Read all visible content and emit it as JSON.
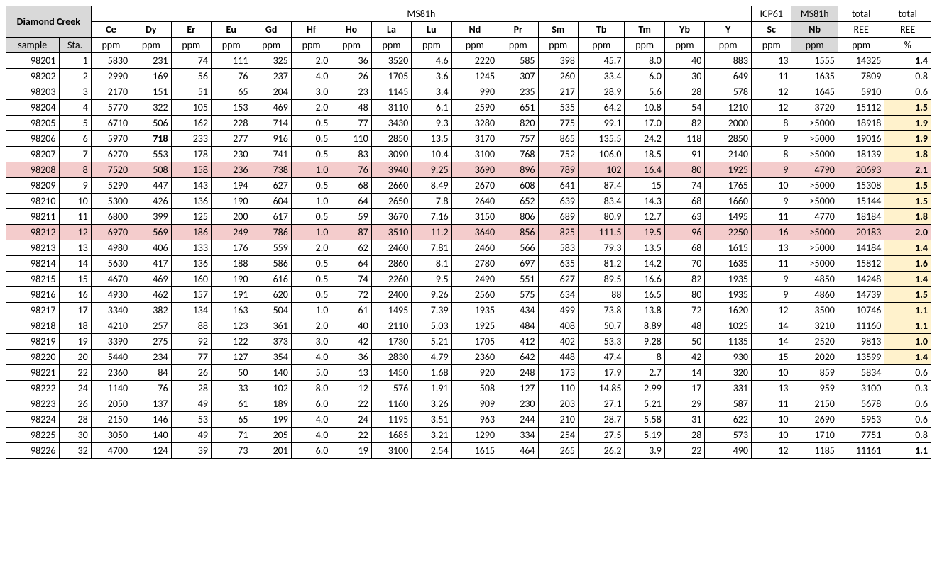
{
  "title_block": "Diamond Creek",
  "method_groups": {
    "ms81h": "MS81h",
    "icp61": "ICP61",
    "ms81h_b": "MS81h"
  },
  "totals_hdr": {
    "ree_ppm_top": "total",
    "ree_ppm_mid": "REE",
    "ree_ppm_unit": "ppm",
    "ree_pct_top": "total",
    "ree_pct_mid": "REE",
    "ree_pct_unit": "%"
  },
  "col_headers": {
    "sample": "sample",
    "sta": "Sta.",
    "elements": [
      "Ce",
      "Dy",
      "Er",
      "Eu",
      "Gd",
      "Hf",
      "Ho",
      "La",
      "Lu",
      "Nd",
      "Pr",
      "Sm",
      "Tb",
      "Tm",
      "Yb",
      "Y",
      "Sc",
      "Nb"
    ],
    "unit": "ppm"
  },
  "highlight_colors": {
    "pink_row_bg": "#f4cccc",
    "yellow_cell_bg": "#fff2cc",
    "grey_hdr_bg": "#d9d9d9"
  },
  "rows": [
    {
      "sample": "98201",
      "sta": "1",
      "v": [
        "5830",
        "231",
        "74",
        "111",
        "325",
        "2.0",
        "36",
        "3520",
        "4.6",
        "2220",
        "585",
        "398",
        "45.7",
        "8.0",
        "40",
        "883",
        "13",
        "1555"
      ],
      "ree": "14325",
      "pct": "1.4",
      "pctBold": true
    },
    {
      "sample": "98202",
      "sta": "2",
      "v": [
        "2990",
        "169",
        "56",
        "76",
        "237",
        "4.0",
        "26",
        "1705",
        "3.6",
        "1245",
        "307",
        "260",
        "33.4",
        "6.0",
        "30",
        "649",
        "11",
        "1635"
      ],
      "ree": "7809",
      "pct": "0.8"
    },
    {
      "sample": "98203",
      "sta": "3",
      "v": [
        "2170",
        "151",
        "51",
        "65",
        "204",
        "3.0",
        "23",
        "1145",
        "3.4",
        "990",
        "235",
        "217",
        "28.9",
        "5.6",
        "28",
        "578",
        "12",
        "1645"
      ],
      "ree": "5910",
      "pct": "0.6"
    },
    {
      "sample": "98204",
      "sta": "4",
      "v": [
        "5770",
        "322",
        "105",
        "153",
        "469",
        "2.0",
        "48",
        "3110",
        "6.1",
        "2590",
        "651",
        "535",
        "64.2",
        "10.8",
        "54",
        "1210",
        "12",
        "3720"
      ],
      "ree": "15112",
      "pct": "1.5",
      "pctBold": true,
      "pctHl": true
    },
    {
      "sample": "98205",
      "sta": "5",
      "v": [
        "6710",
        "506",
        "162",
        "228",
        "714",
        "0.5",
        "77",
        "3430",
        "9.3",
        "3280",
        "820",
        "775",
        "99.1",
        "17.0",
        "82",
        "2000",
        "8",
        ">5000"
      ],
      "ree": "18918",
      "pct": "1.9",
      "pctBold": true,
      "pctHl": true
    },
    {
      "sample": "98206",
      "sta": "6",
      "v": [
        "5970",
        "718",
        "233",
        "277",
        "916",
        "0.5",
        "110",
        "2850",
        "13.5",
        "3170",
        "757",
        "865",
        "135.5",
        "24.2",
        "118",
        "2850",
        "9",
        ">5000"
      ],
      "ree": "19016",
      "pct": "1.9",
      "pctBold": true,
      "pctHl": true,
      "boldCols": [
        1
      ]
    },
    {
      "sample": "98207",
      "sta": "7",
      "v": [
        "6270",
        "553",
        "178",
        "230",
        "741",
        "0.5",
        "83",
        "3090",
        "10.4",
        "3100",
        "768",
        "752",
        "106.0",
        "18.5",
        "91",
        "2140",
        "8",
        ">5000"
      ],
      "ree": "18139",
      "pct": "1.8",
      "pctBold": true,
      "pctHl": true
    },
    {
      "sample": "98208",
      "sta": "8",
      "v": [
        "7520",
        "508",
        "158",
        "236",
        "738",
        "1.0",
        "76",
        "3940",
        "9.25",
        "3690",
        "896",
        "789",
        "102",
        "16.4",
        "80",
        "1925",
        "9",
        "4790"
      ],
      "ree": "20693",
      "pct": "2.1",
      "pctBold": true,
      "rowHl": "pink"
    },
    {
      "sample": "98209",
      "sta": "9",
      "v": [
        "5290",
        "447",
        "143",
        "194",
        "627",
        "0.5",
        "68",
        "2660",
        "8.49",
        "2670",
        "608",
        "641",
        "87.4",
        "15",
        "74",
        "1765",
        "10",
        ">5000"
      ],
      "ree": "15308",
      "pct": "1.5",
      "pctBold": true,
      "pctHl": true
    },
    {
      "sample": "98210",
      "sta": "10",
      "v": [
        "5300",
        "426",
        "136",
        "190",
        "604",
        "1.0",
        "64",
        "2650",
        "7.8",
        "2640",
        "652",
        "639",
        "83.4",
        "14.3",
        "68",
        "1660",
        "9",
        ">5000"
      ],
      "ree": "15144",
      "pct": "1.5",
      "pctBold": true,
      "pctHl": true
    },
    {
      "sample": "98211",
      "sta": "11",
      "v": [
        "6800",
        "399",
        "125",
        "200",
        "617",
        "0.5",
        "59",
        "3670",
        "7.16",
        "3150",
        "806",
        "689",
        "80.9",
        "12.7",
        "63",
        "1495",
        "11",
        "4770"
      ],
      "ree": "18184",
      "pct": "1.8",
      "pctBold": true,
      "pctHl": true
    },
    {
      "sample": "98212",
      "sta": "12",
      "v": [
        "6970",
        "569",
        "186",
        "249",
        "786",
        "1.0",
        "87",
        "3510",
        "11.2",
        "3640",
        "856",
        "825",
        "111.5",
        "19.5",
        "96",
        "2250",
        "16",
        ">5000"
      ],
      "ree": "20183",
      "pct": "2.0",
      "pctBold": true,
      "rowHl": "pink"
    },
    {
      "sample": "98213",
      "sta": "13",
      "v": [
        "4980",
        "406",
        "133",
        "176",
        "559",
        "2.0",
        "62",
        "2460",
        "7.81",
        "2460",
        "566",
        "583",
        "79.3",
        "13.5",
        "68",
        "1615",
        "13",
        ">5000"
      ],
      "ree": "14184",
      "pct": "1.4",
      "pctBold": true,
      "pctHl": true
    },
    {
      "sample": "98214",
      "sta": "14",
      "v": [
        "5630",
        "417",
        "136",
        "188",
        "586",
        "0.5",
        "64",
        "2860",
        "8.1",
        "2780",
        "697",
        "635",
        "81.2",
        "14.2",
        "70",
        "1635",
        "11",
        ">5000"
      ],
      "ree": "15812",
      "pct": "1.6",
      "pctBold": true,
      "pctHl": true
    },
    {
      "sample": "98215",
      "sta": "15",
      "v": [
        "4670",
        "469",
        "160",
        "190",
        "616",
        "0.5",
        "74",
        "2260",
        "9.5",
        "2490",
        "551",
        "627",
        "89.5",
        "16.6",
        "82",
        "1935",
        "9",
        "4850"
      ],
      "ree": "14248",
      "pct": "1.4",
      "pctBold": true,
      "pctHl": true
    },
    {
      "sample": "98216",
      "sta": "16",
      "v": [
        "4930",
        "462",
        "157",
        "191",
        "620",
        "0.5",
        "72",
        "2400",
        "9.26",
        "2560",
        "575",
        "634",
        "88",
        "16.5",
        "80",
        "1935",
        "9",
        "4860"
      ],
      "ree": "14739",
      "pct": "1.5",
      "pctBold": true,
      "pctHl": true
    },
    {
      "sample": "98217",
      "sta": "17",
      "v": [
        "3340",
        "382",
        "134",
        "163",
        "504",
        "1.0",
        "61",
        "1495",
        "7.39",
        "1935",
        "434",
        "499",
        "73.8",
        "13.8",
        "72",
        "1620",
        "12",
        "3500"
      ],
      "ree": "10746",
      "pct": "1.1",
      "pctBold": true,
      "pctHl": true
    },
    {
      "sample": "98218",
      "sta": "18",
      "v": [
        "4210",
        "257",
        "88",
        "123",
        "361",
        "2.0",
        "40",
        "2110",
        "5.03",
        "1925",
        "484",
        "408",
        "50.7",
        "8.89",
        "48",
        "1025",
        "14",
        "3210"
      ],
      "ree": "11160",
      "pct": "1.1",
      "pctBold": true,
      "pctHl": true
    },
    {
      "sample": "98219",
      "sta": "19",
      "v": [
        "3390",
        "275",
        "92",
        "122",
        "373",
        "3.0",
        "42",
        "1730",
        "5.21",
        "1705",
        "412",
        "402",
        "53.3",
        "9.28",
        "50",
        "1135",
        "14",
        "2520"
      ],
      "ree": "9813",
      "pct": "1.0",
      "pctBold": true,
      "pctHl": true
    },
    {
      "sample": "98220",
      "sta": "20",
      "v": [
        "5440",
        "234",
        "77",
        "127",
        "354",
        "4.0",
        "36",
        "2830",
        "4.79",
        "2360",
        "642",
        "448",
        "47.4",
        "8",
        "42",
        "930",
        "15",
        "2020"
      ],
      "ree": "13599",
      "pct": "1.4",
      "pctBold": true,
      "pctHl": true
    },
    {
      "sample": "98221",
      "sta": "22",
      "v": [
        "2360",
        "84",
        "26",
        "50",
        "140",
        "5.0",
        "13",
        "1450",
        "1.68",
        "920",
        "248",
        "173",
        "17.9",
        "2.7",
        "14",
        "320",
        "10",
        "859"
      ],
      "ree": "5834",
      "pct": "0.6"
    },
    {
      "sample": "98222",
      "sta": "24",
      "v": [
        "1140",
        "76",
        "28",
        "33",
        "102",
        "8.0",
        "12",
        "576",
        "1.91",
        "508",
        "127",
        "110",
        "14.85",
        "2.99",
        "17",
        "331",
        "13",
        "959"
      ],
      "ree": "3100",
      "pct": "0.3"
    },
    {
      "sample": "98223",
      "sta": "26",
      "v": [
        "2050",
        "137",
        "49",
        "61",
        "189",
        "6.0",
        "22",
        "1160",
        "3.26",
        "909",
        "230",
        "203",
        "27.1",
        "5.21",
        "29",
        "587",
        "11",
        "2150"
      ],
      "ree": "5678",
      "pct": "0.6"
    },
    {
      "sample": "98224",
      "sta": "28",
      "v": [
        "2150",
        "146",
        "53",
        "65",
        "199",
        "4.0",
        "24",
        "1195",
        "3.51",
        "963",
        "244",
        "210",
        "28.7",
        "5.58",
        "31",
        "622",
        "10",
        "2690"
      ],
      "ree": "5953",
      "pct": "0.6"
    },
    {
      "sample": "98225",
      "sta": "30",
      "v": [
        "3050",
        "140",
        "49",
        "71",
        "205",
        "4.0",
        "22",
        "1685",
        "3.21",
        "1290",
        "334",
        "254",
        "27.5",
        "5.19",
        "28",
        "573",
        "10",
        "1710"
      ],
      "ree": "7751",
      "pct": "0.8"
    },
    {
      "sample": "98226",
      "sta": "32",
      "v": [
        "4700",
        "124",
        "39",
        "73",
        "201",
        "6.0",
        "19",
        "3100",
        "2.54",
        "1615",
        "464",
        "265",
        "26.2",
        "3.9",
        "22",
        "490",
        "12",
        "1185"
      ],
      "ree": "11161",
      "pct": "1.1",
      "pctBold": true
    }
  ]
}
